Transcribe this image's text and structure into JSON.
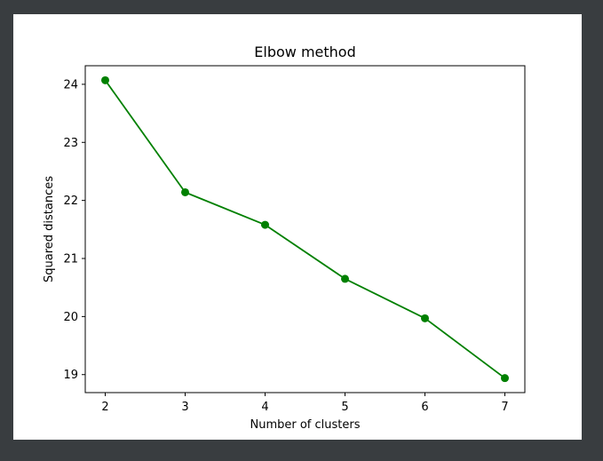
{
  "chart_data": {
    "type": "line",
    "title": "Elbow method",
    "xlabel": "Number of clusters",
    "ylabel": "Squared distances",
    "x": [
      2,
      3,
      4,
      5,
      6,
      7
    ],
    "xticks": [
      "2",
      "3",
      "4",
      "5",
      "6",
      "7"
    ],
    "yticks": [
      "19",
      "20",
      "21",
      "22",
      "23",
      "24"
    ],
    "xlim": [
      1.75,
      7.25
    ],
    "ylim": [
      18.69,
      24.32
    ],
    "grid": false,
    "series": [
      {
        "values": [
          24.07,
          22.14,
          21.58,
          20.65,
          19.97,
          18.94
        ],
        "color": "#008000",
        "marker": "circle"
      }
    ]
  }
}
